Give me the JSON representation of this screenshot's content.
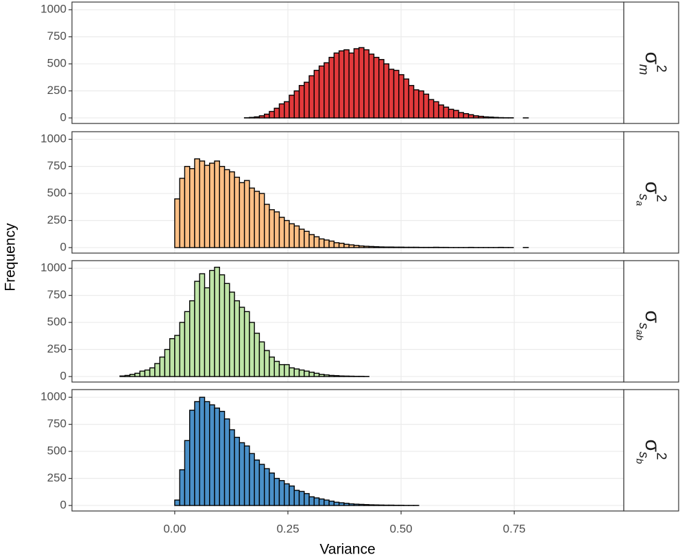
{
  "xlabel": "Variance",
  "ylabel": "Frequency",
  "chart_data": [
    {
      "type": "histogram",
      "strip": {
        "symbol": "σ",
        "subscript": [
          "m"
        ],
        "superscript": "2"
      },
      "color": "#E2393B",
      "bins": [
        -0.165,
        -0.154,
        -0.143,
        -0.132,
        -0.121,
        -0.11,
        -0.099,
        -0.088,
        -0.077,
        -0.066,
        -0.055,
        -0.044,
        -0.033,
        -0.022,
        -0.011,
        0,
        0.011,
        0.022,
        0.033,
        0.044,
        0.055,
        0.066,
        0.077,
        0.088,
        0.099,
        0.11,
        0.121,
        0.132,
        0.143,
        0.154,
        0.165,
        0.176,
        0.187,
        0.198,
        0.209,
        0.22,
        0.231,
        0.242,
        0.253,
        0.264,
        0.275,
        0.286,
        0.297,
        0.308,
        0.319,
        0.33,
        0.341,
        0.352,
        0.363,
        0.374,
        0.385,
        0.396,
        0.407,
        0.418,
        0.429,
        0.44,
        0.451,
        0.462,
        0.473,
        0.484,
        0.495,
        0.506,
        0.517,
        0.528,
        0.539,
        0.55,
        0.561,
        0.572,
        0.583,
        0.594,
        0.605,
        0.616,
        0.627,
        0.638,
        0.649,
        0.66,
        0.671,
        0.682,
        0.693,
        0.704,
        0.715,
        0.726,
        0.737,
        0.748,
        0.759,
        0.77,
        0.781,
        0.792,
        0.803,
        0.814,
        0.825,
        0.836,
        0.847,
        0.858,
        0.869,
        0.88,
        0.891,
        0.902,
        0.913,
        0.924,
        0.935
      ],
      "values": [
        0,
        0,
        0,
        0,
        0,
        0,
        0,
        0,
        0,
        0,
        0,
        0,
        0,
        0,
        0,
        0,
        0,
        0,
        0,
        0,
        0,
        0,
        0,
        0,
        0,
        0,
        0,
        0,
        0,
        2,
        5,
        10,
        20,
        35,
        60,
        90,
        130,
        150,
        210,
        250,
        300,
        330,
        390,
        440,
        480,
        510,
        560,
        600,
        620,
        630,
        600,
        640,
        650,
        630,
        590,
        560,
        540,
        500,
        450,
        440,
        400,
        360,
        300,
        260,
        250,
        220,
        170,
        150,
        120,
        100,
        80,
        70,
        50,
        40,
        30,
        20,
        15,
        10,
        8,
        5,
        3,
        2,
        2,
        0,
        0,
        1,
        0,
        0,
        0,
        0,
        0,
        0,
        0,
        0,
        0,
        0,
        0,
        0,
        0,
        0
      ],
      "xlim": [
        -0.227,
        0.992
      ],
      "xticks": [
        {
          "value": 0,
          "label": "0.00"
        },
        {
          "value": 0.25,
          "label": "0.25"
        },
        {
          "value": 0.5,
          "label": "0.50"
        },
        {
          "value": 0.75,
          "label": "0.75"
        }
      ],
      "ylim": [
        -51,
        1071
      ],
      "yticks": [
        0,
        250,
        500,
        750,
        1000
      ],
      "grid": true
    },
    {
      "type": "histogram",
      "strip": {
        "symbol": "σ",
        "subscript": [
          "s",
          "a"
        ],
        "superscript": "2"
      },
      "color": "#FDBF85",
      "bins": [
        -0.165,
        -0.154,
        -0.143,
        -0.132,
        -0.121,
        -0.11,
        -0.099,
        -0.088,
        -0.077,
        -0.066,
        -0.055,
        -0.044,
        -0.033,
        -0.022,
        -0.011,
        0,
        0.011,
        0.022,
        0.033,
        0.044,
        0.055,
        0.066,
        0.077,
        0.088,
        0.099,
        0.11,
        0.121,
        0.132,
        0.143,
        0.154,
        0.165,
        0.176,
        0.187,
        0.198,
        0.209,
        0.22,
        0.231,
        0.242,
        0.253,
        0.264,
        0.275,
        0.286,
        0.297,
        0.308,
        0.319,
        0.33,
        0.341,
        0.352,
        0.363,
        0.374,
        0.385,
        0.396,
        0.407,
        0.418,
        0.429,
        0.44,
        0.451,
        0.462,
        0.473,
        0.484,
        0.495,
        0.506,
        0.517,
        0.528,
        0.539,
        0.55,
        0.561,
        0.572,
        0.583,
        0.594,
        0.605,
        0.616,
        0.627,
        0.638,
        0.649,
        0.66,
        0.671,
        0.682,
        0.693,
        0.704,
        0.715,
        0.726,
        0.737,
        0.748,
        0.759,
        0.77,
        0.781,
        0.792,
        0.803,
        0.814,
        0.825,
        0.836,
        0.847,
        0.858,
        0.869,
        0.88,
        0.891,
        0.902,
        0.913,
        0.924,
        0.935
      ],
      "values": [
        0,
        0,
        0,
        0,
        0,
        0,
        0,
        0,
        0,
        0,
        0,
        0,
        0,
        0,
        0,
        450,
        640,
        750,
        730,
        820,
        800,
        760,
        780,
        800,
        750,
        720,
        700,
        650,
        600,
        620,
        550,
        520,
        500,
        400,
        350,
        330,
        280,
        250,
        220,
        200,
        170,
        150,
        120,
        100,
        80,
        70,
        60,
        45,
        40,
        30,
        25,
        20,
        15,
        12,
        10,
        8,
        6,
        5,
        5,
        4,
        4,
        3,
        3,
        3,
        2,
        2,
        2,
        3,
        2,
        2,
        1,
        1,
        1,
        1,
        2,
        1,
        1,
        1,
        1,
        1,
        2,
        1,
        1,
        0,
        0,
        1,
        0,
        0,
        0,
        0,
        0,
        0,
        0,
        0,
        0,
        0,
        0,
        0,
        0,
        0
      ],
      "xlim": [
        -0.227,
        0.992
      ],
      "xticks": [
        {
          "value": 0,
          "label": "0.00"
        },
        {
          "value": 0.25,
          "label": "0.25"
        },
        {
          "value": 0.5,
          "label": "0.50"
        },
        {
          "value": 0.75,
          "label": "0.75"
        }
      ],
      "ylim": [
        -51,
        1071
      ],
      "yticks": [
        0,
        250,
        500,
        750,
        1000
      ],
      "grid": true
    },
    {
      "type": "histogram",
      "strip": {
        "symbol": "σ",
        "subscript": [
          "s",
          "ab"
        ]
      },
      "color": "#BFE5A8",
      "bins": [
        -0.165,
        -0.154,
        -0.143,
        -0.132,
        -0.121,
        -0.11,
        -0.099,
        -0.088,
        -0.077,
        -0.066,
        -0.055,
        -0.044,
        -0.033,
        -0.022,
        -0.011,
        0,
        0.011,
        0.022,
        0.033,
        0.044,
        0.055,
        0.066,
        0.077,
        0.088,
        0.099,
        0.11,
        0.121,
        0.132,
        0.143,
        0.154,
        0.165,
        0.176,
        0.187,
        0.198,
        0.209,
        0.22,
        0.231,
        0.242,
        0.253,
        0.264,
        0.275,
        0.286,
        0.297,
        0.308,
        0.319,
        0.33,
        0.341,
        0.352,
        0.363,
        0.374,
        0.385,
        0.396,
        0.407,
        0.418,
        0.429,
        0.44,
        0.451,
        0.462,
        0.473,
        0.484,
        0.495,
        0.506,
        0.517,
        0.528,
        0.539,
        0.55,
        0.561,
        0.572,
        0.583,
        0.594,
        0.605,
        0.616,
        0.627,
        0.638,
        0.649,
        0.66,
        0.671,
        0.682,
        0.693,
        0.704,
        0.715,
        0.726,
        0.737,
        0.748,
        0.759,
        0.77,
        0.781,
        0.792,
        0.803,
        0.814,
        0.825,
        0.836,
        0.847,
        0.858,
        0.869,
        0.88,
        0.891,
        0.902,
        0.913,
        0.924,
        0.935
      ],
      "values": [
        0,
        0,
        0,
        0,
        5,
        10,
        20,
        30,
        50,
        60,
        80,
        120,
        180,
        250,
        350,
        380,
        500,
        600,
        700,
        880,
        950,
        820,
        980,
        1010,
        940,
        860,
        780,
        700,
        640,
        600,
        500,
        400,
        320,
        240,
        180,
        140,
        110,
        110,
        80,
        70,
        60,
        50,
        40,
        30,
        20,
        15,
        10,
        8,
        5,
        4,
        3,
        2,
        2,
        1,
        0,
        0,
        0,
        0,
        0,
        0,
        0,
        0,
        0,
        0,
        0,
        0,
        0,
        0,
        0,
        0,
        0,
        0,
        0,
        0,
        0,
        0,
        0,
        0,
        0,
        0,
        0,
        0,
        0,
        0,
        0,
        0,
        0,
        0,
        0,
        0,
        0,
        0,
        0,
        0,
        0,
        0,
        0,
        0,
        0,
        0
      ],
      "xlim": [
        -0.227,
        0.992
      ],
      "xticks": [
        {
          "value": 0,
          "label": "0.00"
        },
        {
          "value": 0.25,
          "label": "0.25"
        },
        {
          "value": 0.5,
          "label": "0.50"
        },
        {
          "value": 0.75,
          "label": "0.75"
        }
      ],
      "ylim": [
        -51,
        1071
      ],
      "yticks": [
        0,
        250,
        500,
        750,
        1000
      ],
      "grid": true
    },
    {
      "type": "histogram",
      "strip": {
        "symbol": "σ",
        "subscript": [
          "s",
          "b"
        ],
        "superscript": "2"
      },
      "color": "#4A90C8",
      "bins": [
        -0.165,
        -0.154,
        -0.143,
        -0.132,
        -0.121,
        -0.11,
        -0.099,
        -0.088,
        -0.077,
        -0.066,
        -0.055,
        -0.044,
        -0.033,
        -0.022,
        -0.011,
        0,
        0.011,
        0.022,
        0.033,
        0.044,
        0.055,
        0.066,
        0.077,
        0.088,
        0.099,
        0.11,
        0.121,
        0.132,
        0.143,
        0.154,
        0.165,
        0.176,
        0.187,
        0.198,
        0.209,
        0.22,
        0.231,
        0.242,
        0.253,
        0.264,
        0.275,
        0.286,
        0.297,
        0.308,
        0.319,
        0.33,
        0.341,
        0.352,
        0.363,
        0.374,
        0.385,
        0.396,
        0.407,
        0.418,
        0.429,
        0.44,
        0.451,
        0.462,
        0.473,
        0.484,
        0.495,
        0.506,
        0.517,
        0.528,
        0.539,
        0.55,
        0.561,
        0.572,
        0.583,
        0.594,
        0.605,
        0.616,
        0.627,
        0.638,
        0.649,
        0.66,
        0.671,
        0.682,
        0.693,
        0.704,
        0.715,
        0.726,
        0.737,
        0.748,
        0.759,
        0.77,
        0.781,
        0.792,
        0.803,
        0.814,
        0.825,
        0.836,
        0.847,
        0.858,
        0.869,
        0.88,
        0.891,
        0.902,
        0.913,
        0.924,
        0.935
      ],
      "values": [
        0,
        0,
        0,
        0,
        0,
        0,
        0,
        0,
        0,
        0,
        0,
        0,
        0,
        0,
        0,
        50,
        330,
        600,
        880,
        960,
        1000,
        960,
        930,
        900,
        870,
        800,
        700,
        630,
        580,
        550,
        480,
        420,
        380,
        340,
        300,
        250,
        230,
        200,
        180,
        140,
        130,
        110,
        80,
        70,
        60,
        50,
        40,
        30,
        25,
        20,
        15,
        12,
        10,
        8,
        6,
        5,
        4,
        3,
        3,
        2,
        2,
        1,
        1,
        1,
        0,
        0,
        0,
        0,
        0,
        0,
        0,
        0,
        0,
        0,
        0,
        0,
        0,
        0,
        0,
        0,
        0,
        0,
        0,
        0,
        0,
        0,
        0,
        0,
        0,
        0,
        0,
        0,
        0,
        0,
        0,
        0,
        0,
        0,
        0,
        0
      ],
      "xlim": [
        -0.227,
        0.992
      ],
      "xticks": [
        {
          "value": 0,
          "label": "0.00"
        },
        {
          "value": 0.25,
          "label": "0.25"
        },
        {
          "value": 0.5,
          "label": "0.50"
        },
        {
          "value": 0.75,
          "label": "0.75"
        }
      ],
      "ylim": [
        -51,
        1071
      ],
      "yticks": [
        0,
        250,
        500,
        750,
        1000
      ],
      "grid": true
    }
  ]
}
